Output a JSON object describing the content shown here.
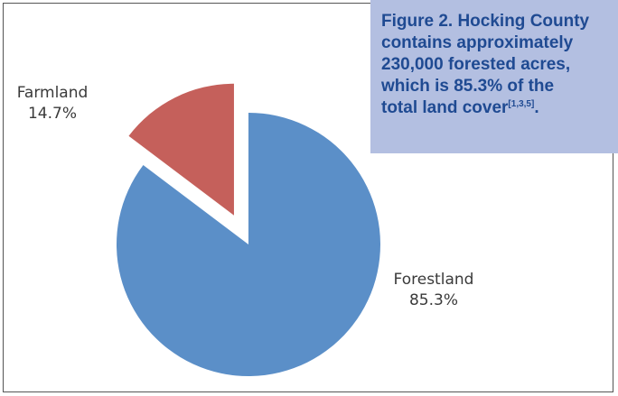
{
  "caption": {
    "line1": "Figure 2. Hocking County",
    "line2": "contains approximately",
    "line3": "230,000 forested acres,",
    "line4": "which is 85.3% of the",
    "line5": "total land cover",
    "refs": "[1,3,5]",
    "end": "."
  },
  "chart_data": {
    "type": "pie",
    "slices": [
      {
        "label": "Forestland",
        "value": 85.3,
        "value_label": "85.3%",
        "color": "#5b8fc8",
        "exploded": false
      },
      {
        "label": "Farmland",
        "value": 14.7,
        "value_label": "14.7%",
        "color": "#c5605b",
        "exploded": true
      }
    ]
  }
}
